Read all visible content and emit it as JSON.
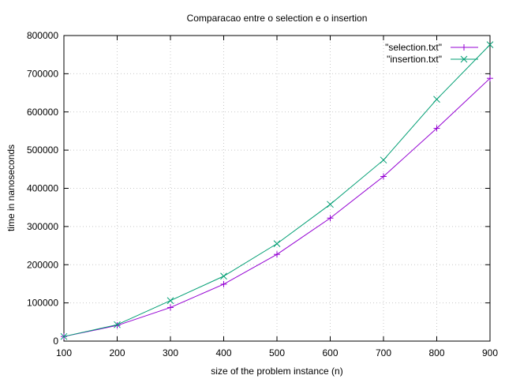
{
  "chart_data": {
    "type": "line",
    "title": "Comparacao entre o selection e o insertion",
    "xlabel": "size of the problem instance (n)",
    "ylabel": "time in nanoseconds",
    "xlim": [
      100,
      900
    ],
    "ylim": [
      0,
      800000
    ],
    "xticks": [
      100,
      200,
      300,
      400,
      500,
      600,
      700,
      800,
      900
    ],
    "yticks": [
      0,
      100000,
      200000,
      300000,
      400000,
      500000,
      600000,
      700000,
      800000
    ],
    "grid": true,
    "legend_position": "top-right",
    "x": [
      100,
      200,
      300,
      400,
      500,
      600,
      700,
      800,
      900
    ],
    "series": [
      {
        "name": "\"selection.txt\"",
        "color": "#9400d3",
        "marker": "plus",
        "values": [
          12000,
          41000,
          88000,
          149000,
          227000,
          322000,
          431000,
          557000,
          688000
        ]
      },
      {
        "name": "\"insertion.txt\"",
        "color": "#009e73",
        "marker": "cross",
        "values": [
          12000,
          43000,
          106000,
          170000,
          255000,
          358000,
          474000,
          633000,
          776000
        ]
      }
    ]
  }
}
